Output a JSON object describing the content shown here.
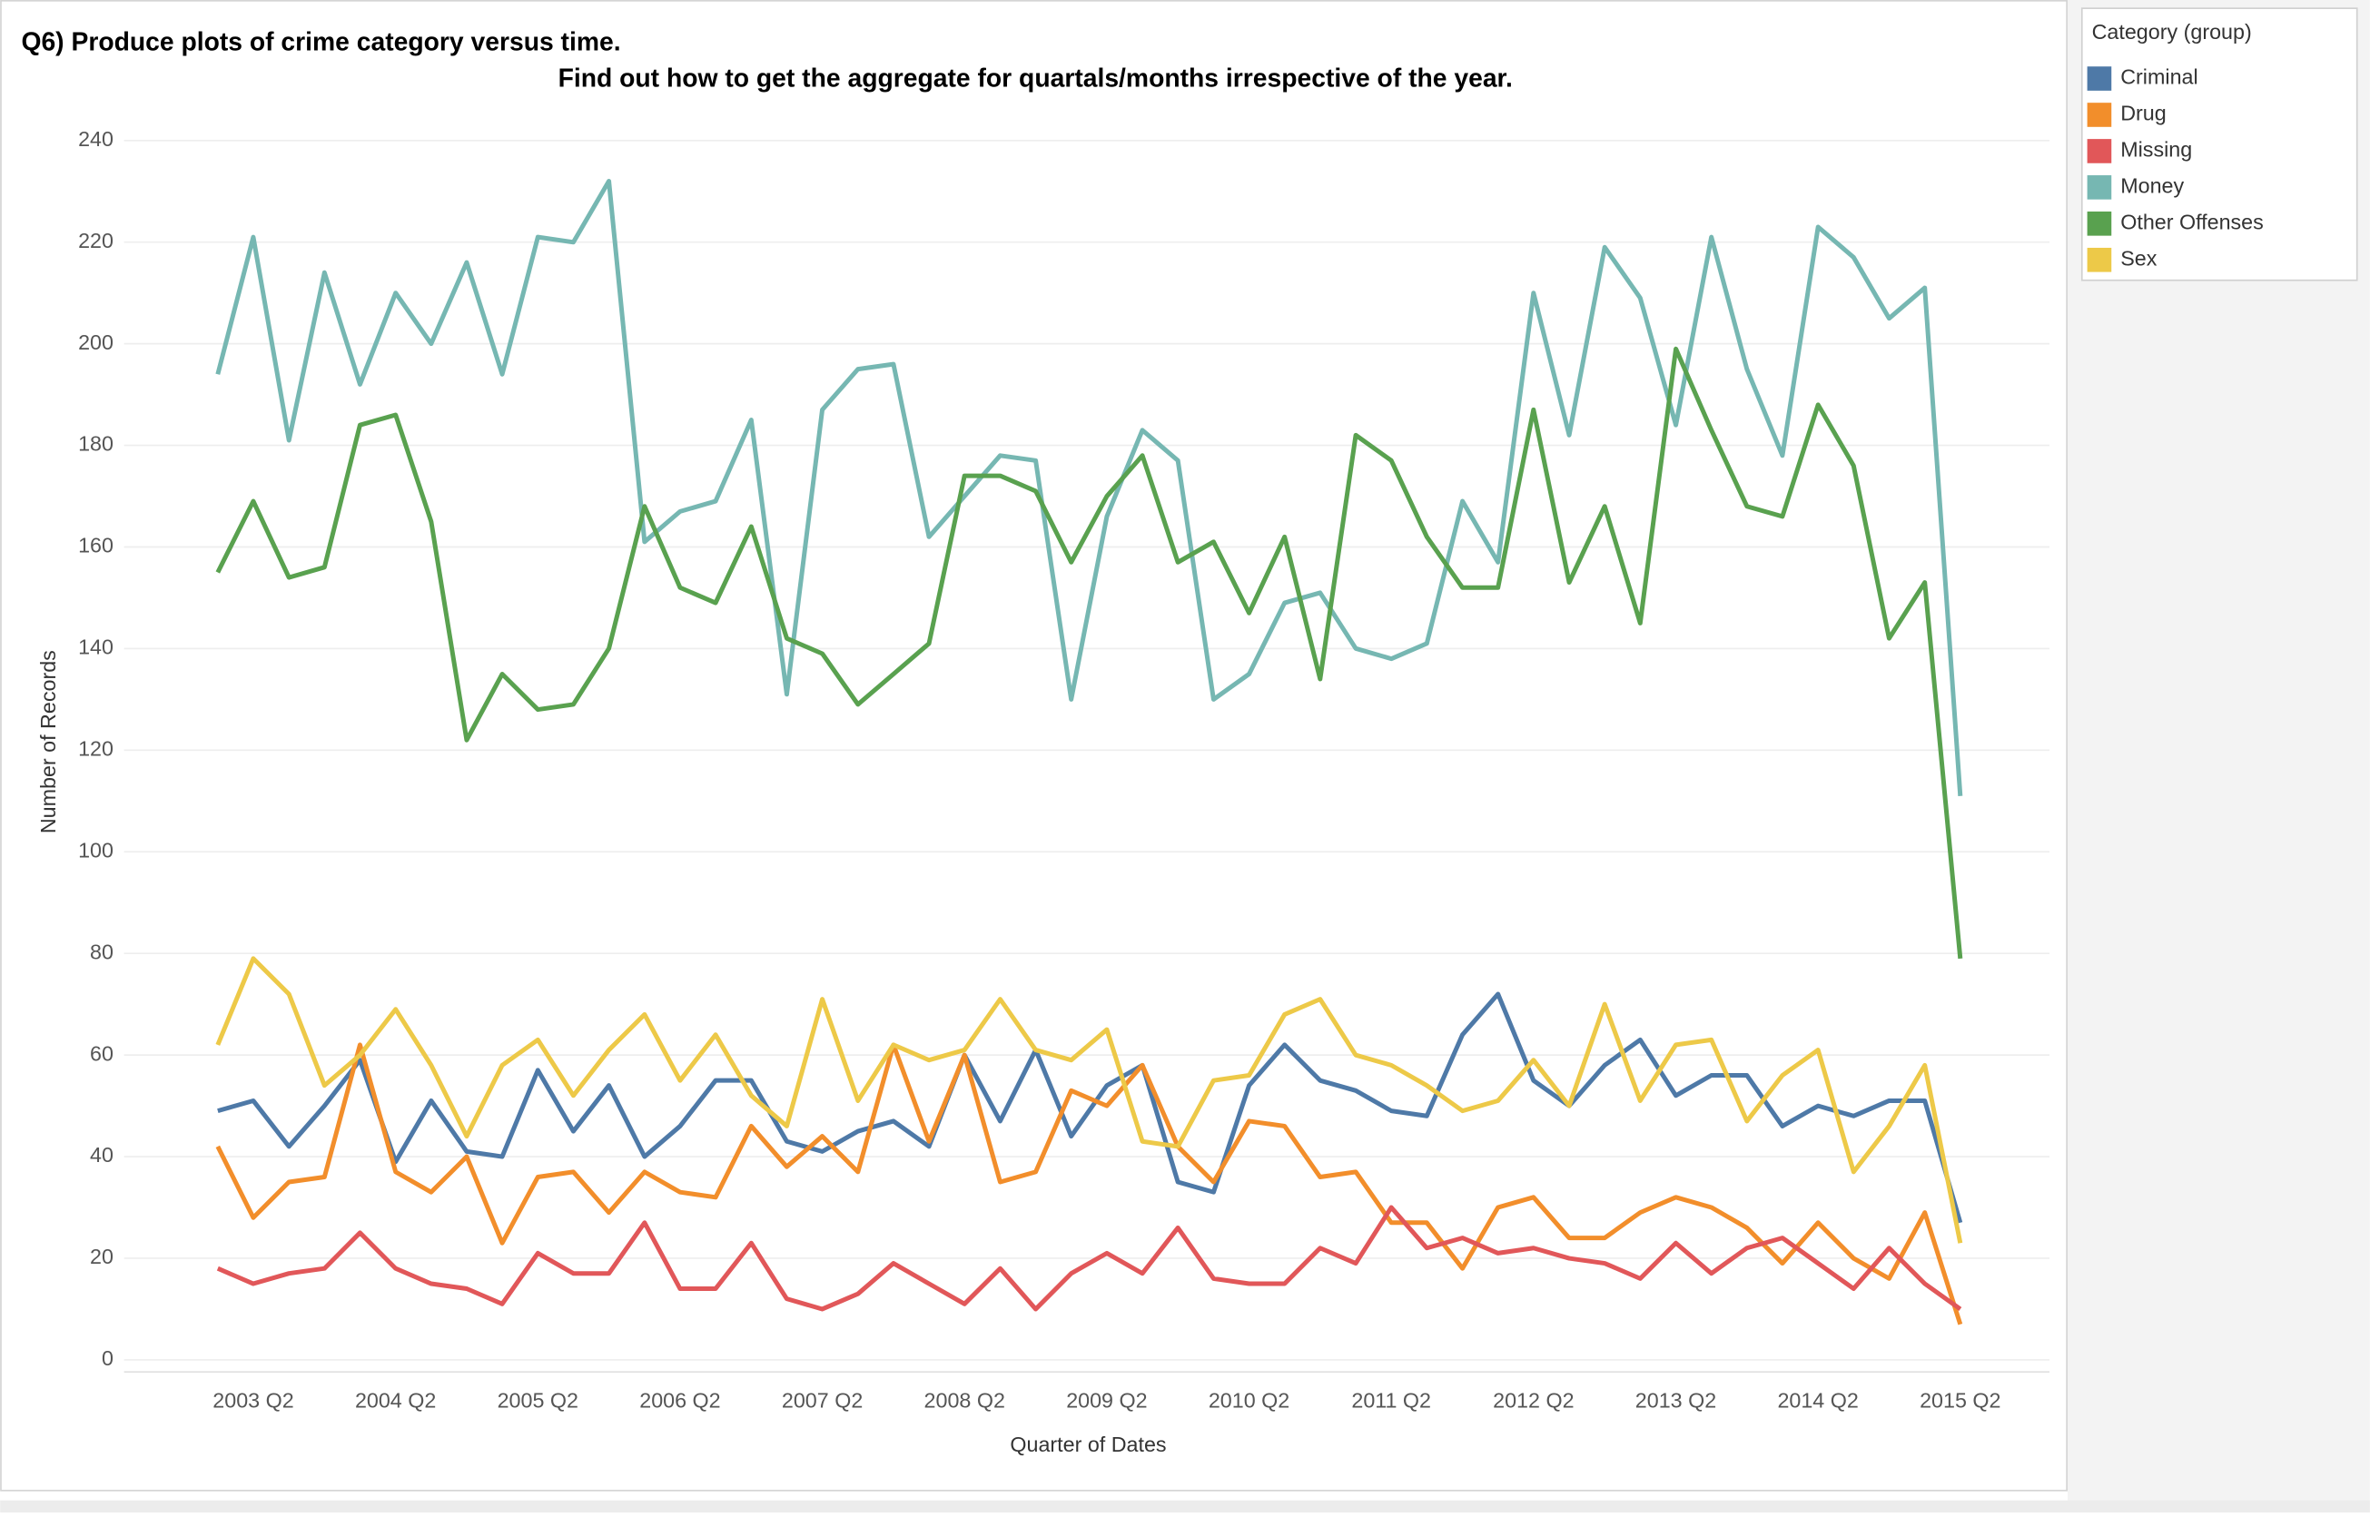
{
  "chart_data": {
    "type": "line",
    "title": "Q6) Produce plots of crime category versus time.",
    "subtitle": "Find out how to get the aggregate for quartals/months irrespective of the year.",
    "x_label": "Quarter of Dates",
    "y_label": "Number of Records",
    "legend_title": "Category (group)",
    "legend": "right",
    "grid": true,
    "ylim": [
      0,
      240
    ],
    "yticks": [
      0,
      20,
      40,
      60,
      80,
      100,
      120,
      140,
      160,
      180,
      200,
      220,
      240
    ],
    "categories": [
      null,
      "2003 Q2",
      null,
      null,
      null,
      "2004 Q2",
      null,
      null,
      null,
      "2005 Q2",
      null,
      null,
      null,
      "2006 Q2",
      null,
      null,
      null,
      "2007 Q2",
      null,
      null,
      null,
      "2008 Q2",
      null,
      null,
      null,
      "2009 Q2",
      null,
      null,
      null,
      "2010 Q2",
      null,
      null,
      null,
      "2011 Q2",
      null,
      null,
      null,
      "2012 Q2",
      null,
      null,
      null,
      "2013 Q2",
      null,
      null,
      null,
      "2014 Q2",
      null,
      null,
      null,
      "2015 Q2"
    ],
    "series": [
      {
        "name": "Criminal",
        "color": "#4e79a7",
        "values": [
          49,
          51,
          42,
          50,
          59,
          39,
          51,
          41,
          40,
          57,
          45,
          54,
          40,
          46,
          55,
          55,
          43,
          41,
          45,
          47,
          42,
          60,
          47,
          61,
          44,
          54,
          58,
          35,
          33,
          54,
          62,
          55,
          53,
          49,
          48,
          64,
          72,
          55,
          50,
          58,
          63,
          52,
          56,
          56,
          46,
          50,
          48,
          51,
          51,
          27
        ]
      },
      {
        "name": "Drug",
        "color": "#f28e2b",
        "values": [
          42,
          28,
          35,
          36,
          62,
          37,
          33,
          40,
          23,
          36,
          37,
          29,
          37,
          33,
          32,
          46,
          38,
          44,
          37,
          62,
          43,
          60,
          35,
          37,
          53,
          50,
          58,
          42,
          35,
          47,
          46,
          36,
          37,
          27,
          27,
          18,
          30,
          32,
          24,
          24,
          29,
          32,
          30,
          26,
          19,
          27,
          20,
          16,
          29,
          7
        ]
      },
      {
        "name": "Missing",
        "color": "#e15759",
        "values": [
          18,
          15,
          17,
          18,
          25,
          18,
          15,
          14,
          11,
          21,
          17,
          17,
          27,
          14,
          14,
          23,
          12,
          10,
          13,
          19,
          15,
          11,
          18,
          10,
          17,
          21,
          17,
          26,
          16,
          15,
          15,
          22,
          19,
          30,
          22,
          24,
          21,
          22,
          20,
          19,
          16,
          23,
          17,
          22,
          24,
          19,
          14,
          22,
          15,
          10
        ]
      },
      {
        "name": "Money",
        "color": "#76b7b2",
        "values": [
          194,
          221,
          181,
          214,
          192,
          210,
          200,
          216,
          194,
          221,
          220,
          232,
          161,
          167,
          169,
          185,
          131,
          187,
          195,
          196,
          162,
          170,
          178,
          177,
          130,
          166,
          183,
          177,
          130,
          135,
          149,
          151,
          140,
          138,
          141,
          169,
          157,
          210,
          182,
          219,
          209,
          184,
          221,
          195,
          178,
          223,
          217,
          205,
          211,
          111
        ]
      },
      {
        "name": "Other Offenses",
        "color": "#59a14f",
        "values": [
          155,
          169,
          154,
          156,
          184,
          186,
          165,
          122,
          135,
          128,
          129,
          140,
          168,
          152,
          149,
          164,
          142,
          139,
          129,
          135,
          141,
          174,
          174,
          171,
          157,
          170,
          178,
          157,
          161,
          147,
          162,
          134,
          182,
          177,
          162,
          152,
          152,
          187,
          153,
          168,
          145,
          199,
          183,
          168,
          166,
          188,
          176,
          142,
          153,
          79
        ]
      },
      {
        "name": "Sex",
        "color": "#edc948",
        "values": [
          62,
          79,
          72,
          54,
          60,
          69,
          58,
          44,
          58,
          63,
          52,
          61,
          68,
          55,
          64,
          52,
          46,
          71,
          51,
          62,
          59,
          61,
          71,
          61,
          59,
          65,
          43,
          42,
          55,
          56,
          68,
          71,
          60,
          58,
          54,
          49,
          51,
          59,
          50,
          70,
          51,
          62,
          63,
          47,
          56,
          61,
          37,
          46,
          58,
          23
        ]
      }
    ]
  }
}
